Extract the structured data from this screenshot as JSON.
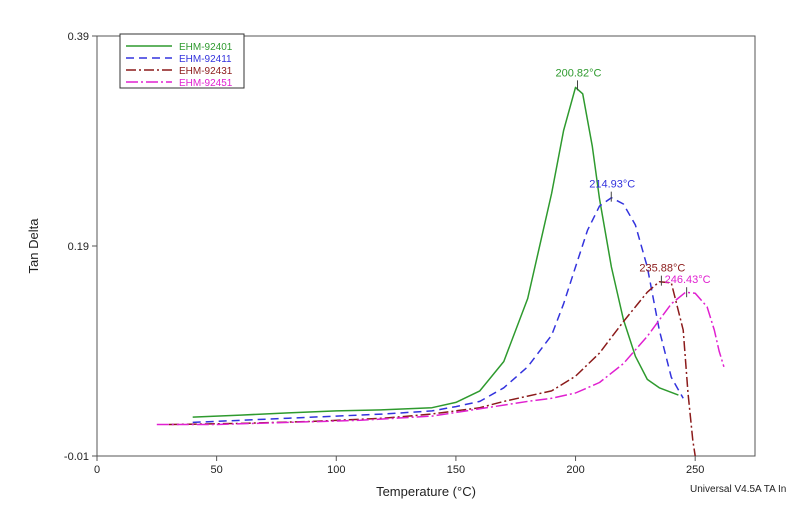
{
  "chart_data": {
    "type": "line",
    "xlabel": "Temperature (°C)",
    "ylabel": "Tan Delta",
    "footer": "Universal V4.5A TA In",
    "xlim": [
      0,
      275
    ],
    "ylim": [
      -0.01,
      0.39
    ],
    "x_ticks": [
      0,
      50,
      100,
      150,
      200,
      250
    ],
    "y_ticks": [
      {
        "value": 0.39,
        "label": "0.39"
      },
      {
        "value": 0.19,
        "label": "0.19"
      },
      {
        "value": -0.01,
        "label": "-0.01"
      }
    ],
    "grid": false,
    "legend_position": "top-left",
    "series": [
      {
        "name": "EHM-92401",
        "color": "#2e9a2e",
        "dash": "solid",
        "peak": {
          "x": 200.82,
          "y": 0.343,
          "label": "200.82°C"
        },
        "x": [
          40,
          60,
          80,
          100,
          120,
          140,
          150,
          160,
          170,
          180,
          190,
          195,
          200,
          203,
          207,
          210,
          215,
          220,
          225,
          230,
          235,
          243
        ],
        "y": [
          0.027,
          0.029,
          0.031,
          0.033,
          0.034,
          0.036,
          0.041,
          0.052,
          0.08,
          0.14,
          0.24,
          0.3,
          0.341,
          0.335,
          0.285,
          0.235,
          0.17,
          0.12,
          0.085,
          0.063,
          0.055,
          0.048
        ]
      },
      {
        "name": "EHM-92411",
        "color": "#3333dd",
        "dash": "8,5",
        "peak": {
          "x": 214.93,
          "y": 0.237,
          "label": "214.93°C"
        },
        "x": [
          40,
          60,
          80,
          100,
          120,
          140,
          150,
          160,
          170,
          180,
          190,
          195,
          200,
          205,
          210,
          215,
          220,
          225,
          230,
          235,
          240,
          245
        ],
        "y": [
          0.022,
          0.024,
          0.026,
          0.028,
          0.03,
          0.033,
          0.037,
          0.042,
          0.055,
          0.075,
          0.105,
          0.135,
          0.17,
          0.205,
          0.228,
          0.236,
          0.23,
          0.21,
          0.17,
          0.11,
          0.065,
          0.045
        ]
      },
      {
        "name": "EHM-92431",
        "color": "#8b1a1a",
        "dash": "10,3,2,3",
        "peak": {
          "x": 235.88,
          "y": 0.157,
          "label": "235.88°C"
        },
        "x": [
          30,
          60,
          90,
          120,
          140,
          160,
          170,
          180,
          190,
          200,
          210,
          220,
          230,
          235,
          240,
          245,
          247,
          249,
          250
        ],
        "y": [
          0.02,
          0.021,
          0.023,
          0.026,
          0.03,
          0.036,
          0.042,
          0.047,
          0.052,
          0.066,
          0.088,
          0.118,
          0.146,
          0.156,
          0.155,
          0.11,
          0.05,
          0.005,
          -0.01
        ]
      },
      {
        "name": "EHM-92451",
        "color": "#e020d0",
        "dash": "12,3,2,3",
        "peak": {
          "x": 246.43,
          "y": 0.146,
          "label": "246.43°C"
        },
        "x": [
          25,
          50,
          80,
          110,
          140,
          160,
          180,
          190,
          200,
          210,
          220,
          230,
          240,
          246,
          250,
          255,
          258,
          260,
          262
        ],
        "y": [
          0.02,
          0.02,
          0.022,
          0.024,
          0.028,
          0.035,
          0.042,
          0.045,
          0.05,
          0.06,
          0.078,
          0.104,
          0.135,
          0.146,
          0.145,
          0.132,
          0.11,
          0.09,
          0.075
        ]
      }
    ]
  }
}
